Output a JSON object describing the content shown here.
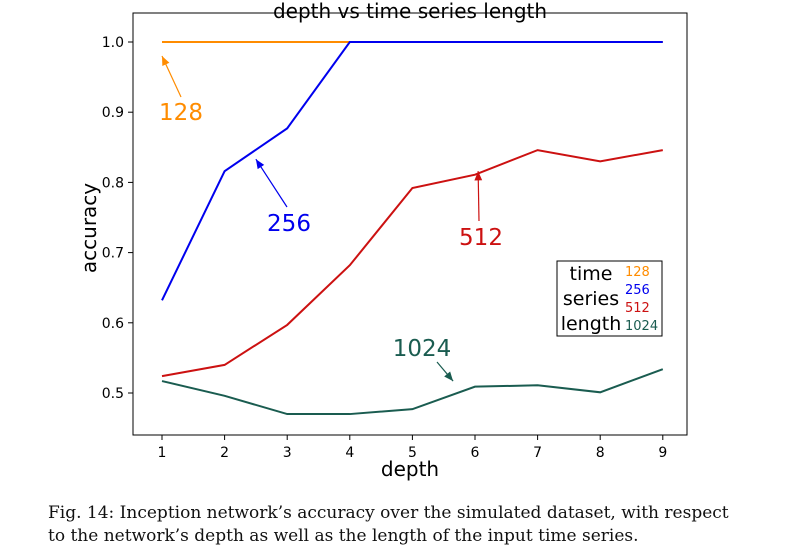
{
  "chart_data": {
    "type": "line",
    "title": "depth vs time series length",
    "xlabel": "depth",
    "ylabel": "accuracy",
    "x": [
      1,
      2,
      3,
      4,
      5,
      6,
      7,
      8,
      9
    ],
    "xlim": [
      0.55,
      9.4
    ],
    "ylim": [
      0.44,
      1.04
    ],
    "xticks": [
      1,
      2,
      3,
      4,
      5,
      6,
      7,
      8,
      9
    ],
    "yticks": [
      0.5,
      0.6,
      0.7,
      0.8,
      0.9,
      1.0
    ],
    "grid": false,
    "series": [
      {
        "name": "128",
        "color": "#ff8c00",
        "values": [
          1.0,
          1.0,
          1.0,
          1.0,
          1.0,
          1.0,
          1.0,
          1.0,
          1.0
        ]
      },
      {
        "name": "256",
        "color": "#0000ee",
        "values": [
          0.632,
          0.816,
          0.877,
          1.0,
          1.0,
          1.0,
          1.0,
          1.0,
          1.0
        ]
      },
      {
        "name": "512",
        "color": "#cc1111",
        "values": [
          0.524,
          0.54,
          0.597,
          0.682,
          0.792,
          0.811,
          0.846,
          0.83,
          0.846
        ]
      },
      {
        "name": "1024",
        "color": "#1a5c50",
        "values": [
          0.517,
          0.496,
          0.47,
          0.47,
          0.477,
          0.509,
          0.511,
          0.501,
          0.534
        ]
      }
    ],
    "annotations": [
      {
        "text": "128",
        "color": "#ff8c00",
        "point": [
          1,
          1.0
        ]
      },
      {
        "text": "256",
        "color": "#0000ee",
        "point": [
          2.5,
          0.833
        ]
      },
      {
        "text": "512",
        "color": "#cc1111",
        "point": [
          6.05,
          0.816
        ]
      },
      {
        "text": "1024",
        "color": "#1a5c50",
        "point": [
          5.65,
          0.517
        ]
      }
    ],
    "legend": {
      "title": "time\nseries\nlength",
      "title_lines": [
        "time",
        "series",
        "length"
      ],
      "placement": "lower-right",
      "entries": [
        "128",
        "256",
        "512",
        "1024"
      ]
    }
  },
  "caption": "Fig. 14: Inception network’s accuracy over the simulated dataset, with respect to the network’s depth as well as the length of the input time series."
}
